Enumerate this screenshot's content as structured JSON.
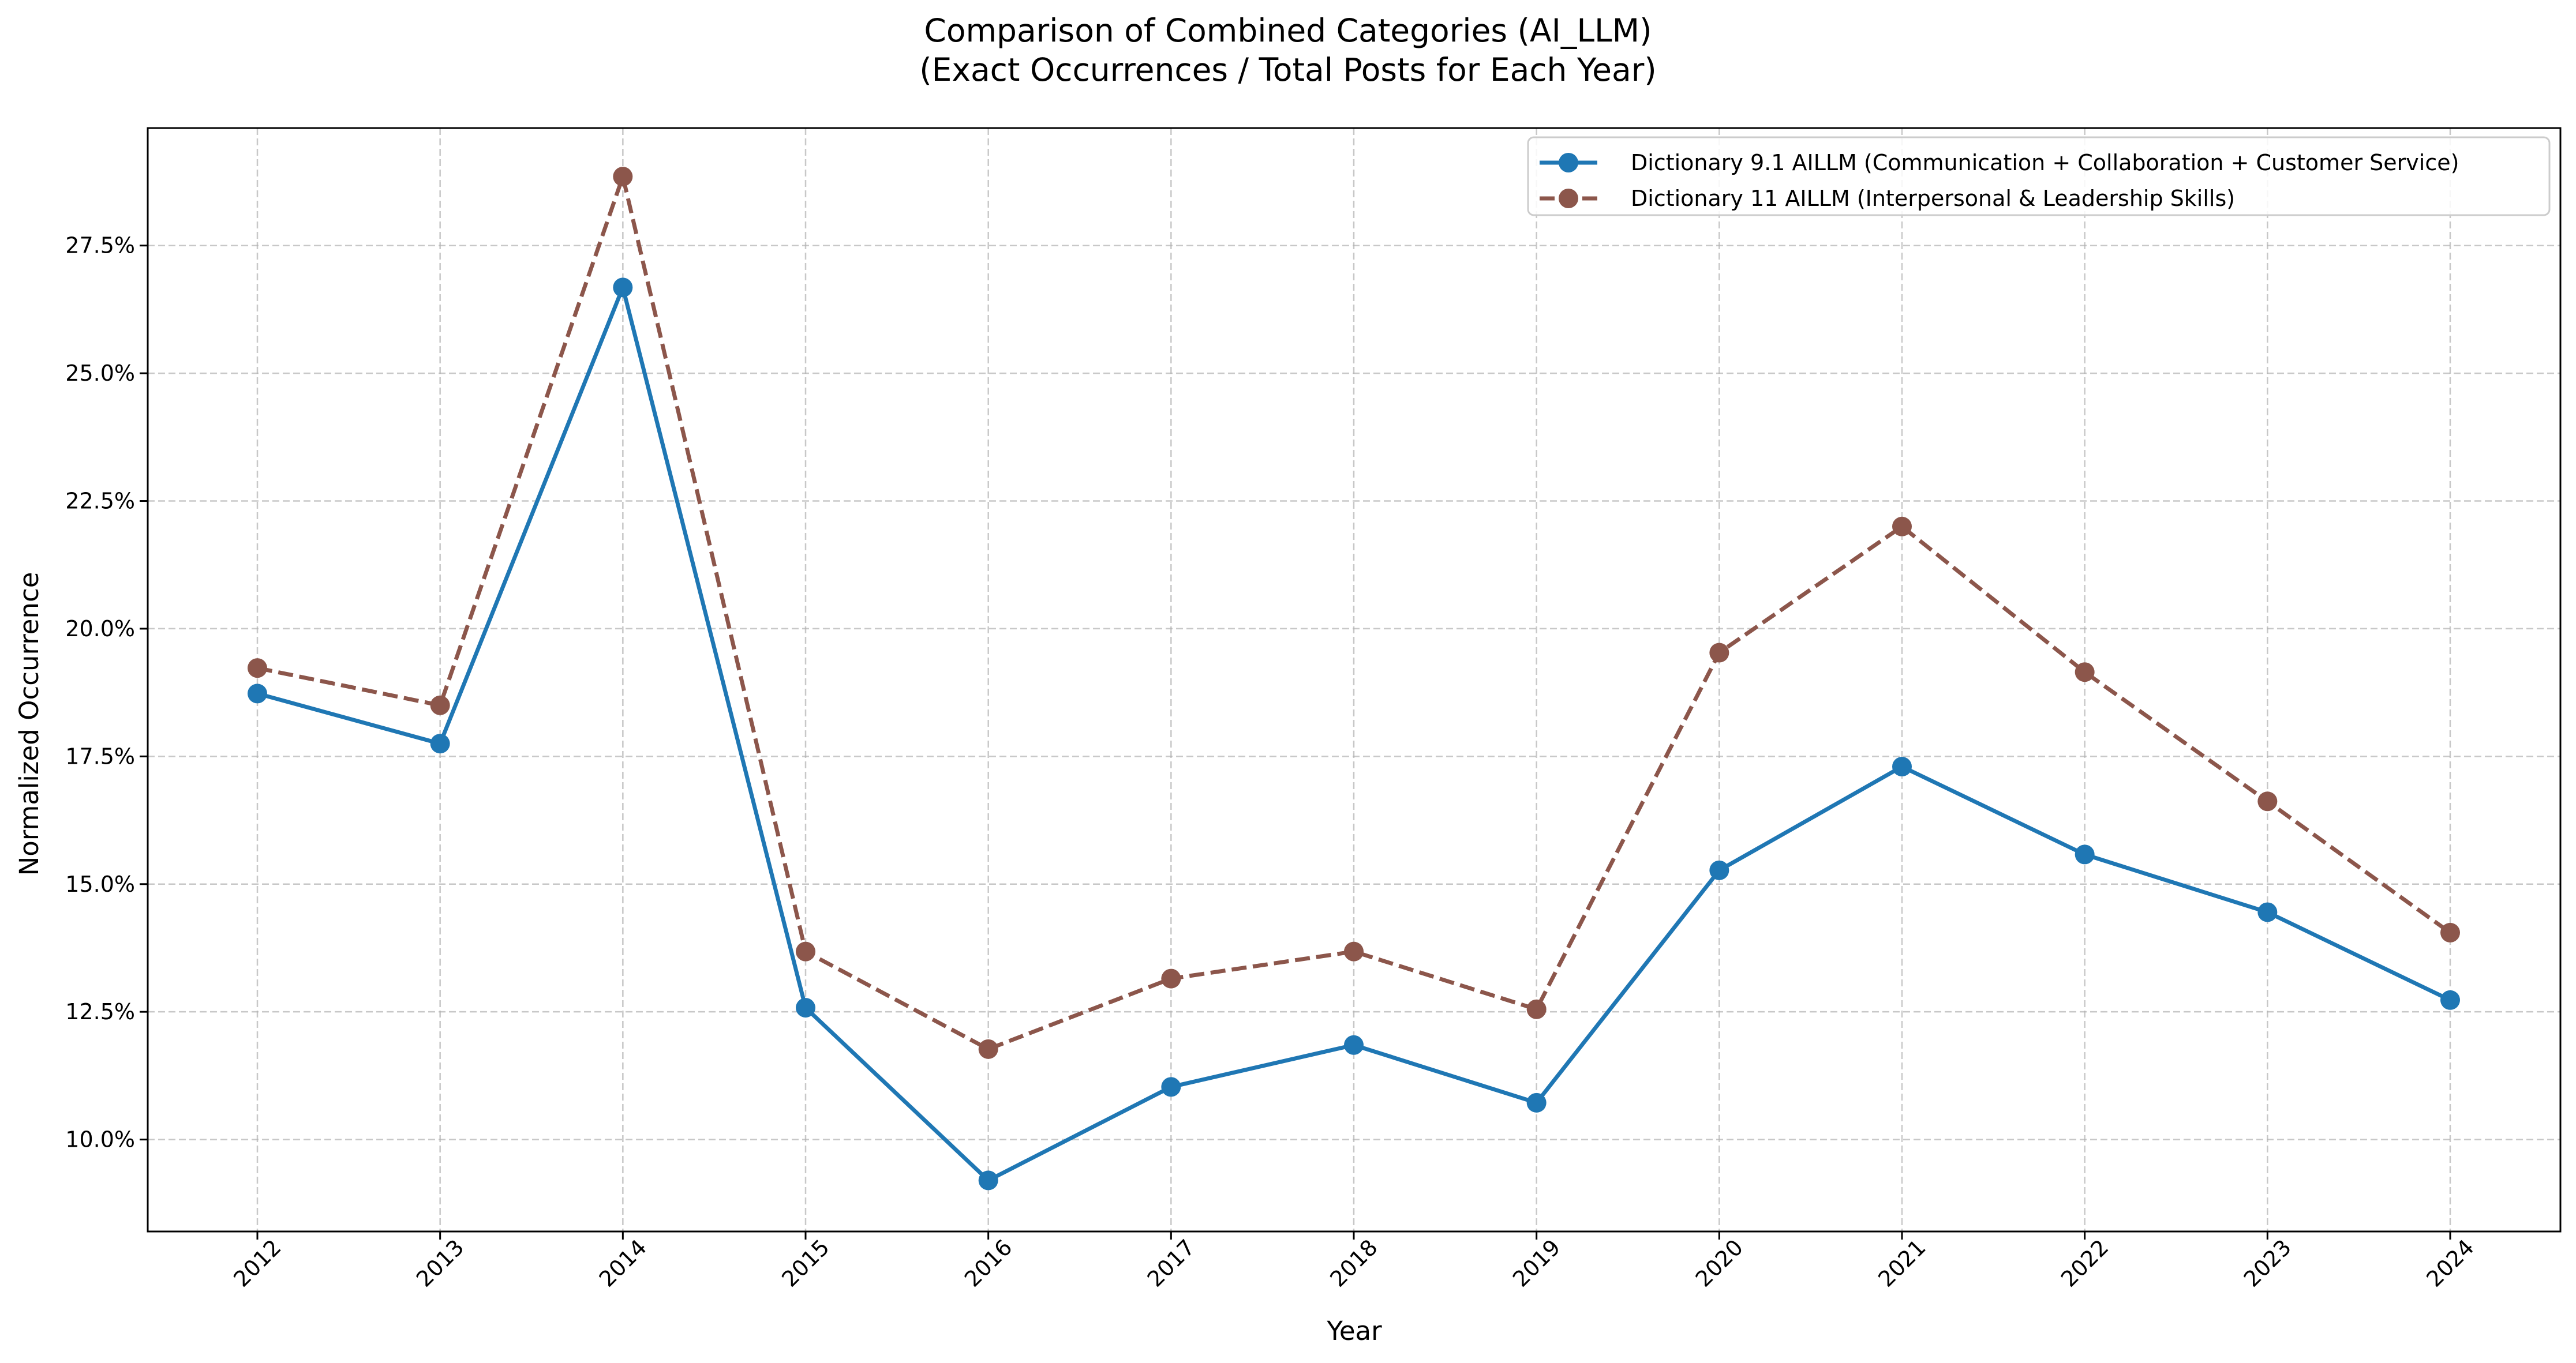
{
  "chart_data": {
    "type": "line",
    "title": "Comparison of Combined Categories (AI_LLM)",
    "subtitle": "(Exact Occurrences / Total Posts for Each Year)",
    "xlabel": "Year",
    "ylabel": "Normalized Occurrence",
    "x": [
      "2012",
      "2013",
      "2014",
      "2015",
      "2016",
      "2017",
      "2018",
      "2019",
      "2020",
      "2021",
      "2022",
      "2023",
      "2024"
    ],
    "ylim": [
      0.082,
      0.298
    ],
    "yticks": [
      0.1,
      0.125,
      0.15,
      0.175,
      0.2,
      0.225,
      0.25,
      0.275
    ],
    "ytick_labels": [
      "10.0%",
      "12.5%",
      "15.0%",
      "17.5%",
      "20.0%",
      "22.5%",
      "25.0%",
      "27.5%"
    ],
    "grid": true,
    "legend_position": "top-right",
    "series": [
      {
        "name": "Dictionary 9.1 AILLM (Communication + Collaboration + Customer Service)",
        "color": "#1f77b4",
        "dash": "solid",
        "values": [
          0.1873,
          0.1775,
          0.2668,
          0.1258,
          0.092,
          0.1103,
          0.1185,
          0.1072,
          0.1527,
          0.173,
          0.1558,
          0.1445,
          0.1273
        ]
      },
      {
        "name": "Dictionary 11 AILLM (Interpersonal & Leadership Skills)",
        "color": "#8c564b",
        "dash": "dashed",
        "values": [
          0.1923,
          0.185,
          0.2885,
          0.1368,
          0.1177,
          0.1315,
          0.1368,
          0.1255,
          0.1953,
          0.22,
          0.1915,
          0.1662,
          0.1405
        ]
      }
    ]
  }
}
